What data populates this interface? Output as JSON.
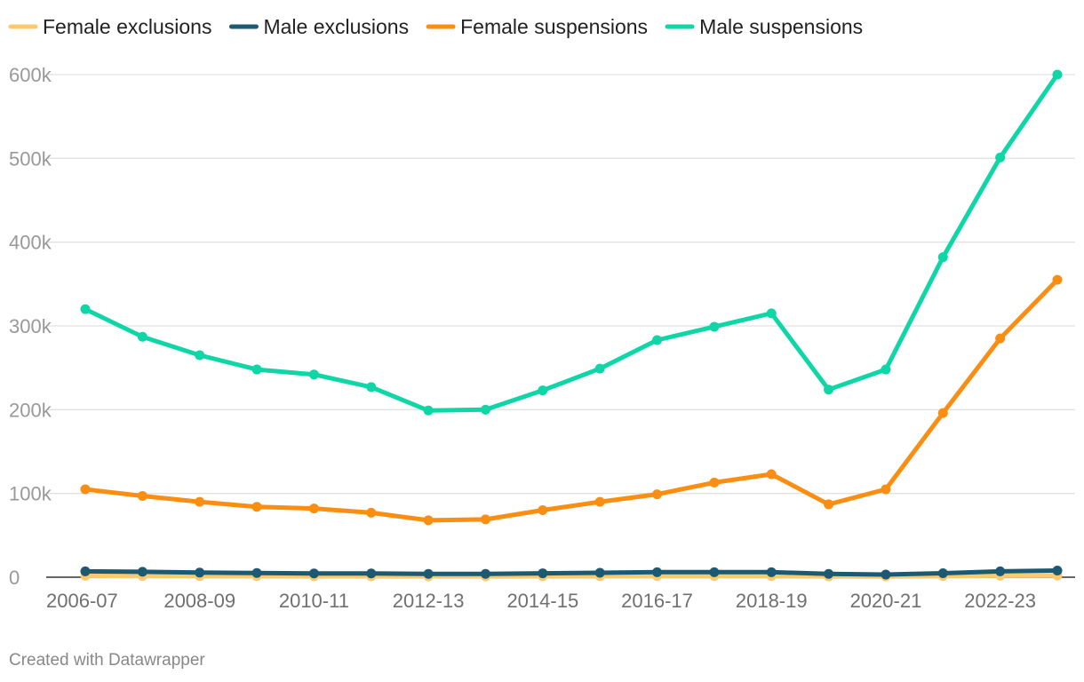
{
  "chart_data": {
    "type": "line",
    "title": "",
    "xlabel": "",
    "ylabel": "",
    "categories": [
      "2006-07",
      "2007-08",
      "2008-09",
      "2009-10",
      "2010-11",
      "2011-12",
      "2012-13",
      "2013-14",
      "2014-15",
      "2015-16",
      "2016-17",
      "2017-18",
      "2018-19",
      "2019-20",
      "2020-21",
      "2021-22",
      "2022-23",
      "2023-24"
    ],
    "x_tick_labels": [
      "2006-07",
      "2008-09",
      "2010-11",
      "2012-13",
      "2014-15",
      "2016-17",
      "2018-19",
      "2020-21",
      "2022-23"
    ],
    "y_tick_values": [
      0,
      100000,
      200000,
      300000,
      400000,
      500000,
      600000
    ],
    "y_tick_labels": [
      "0",
      "100k",
      "200k",
      "300k",
      "400k",
      "500k",
      "600k"
    ],
    "ylim": [
      0,
      600000
    ],
    "grid": true,
    "legend_position": "top-left",
    "series": [
      {
        "name": "Female exclusions",
        "color": "#fcc96c",
        "values": [
          1700,
          1500,
          1300,
          1200,
          1100,
          1100,
          1000,
          1000,
          1100,
          1200,
          1300,
          1400,
          1400,
          1000,
          900,
          1300,
          1800,
          2000
        ]
      },
      {
        "name": "Male exclusions",
        "color": "#1c5a73",
        "values": [
          7000,
          6500,
          5500,
          5000,
          4500,
          4500,
          4000,
          4000,
          4700,
          5300,
          6000,
          6000,
          6000,
          4000,
          3200,
          4800,
          7000,
          8000
        ]
      },
      {
        "name": "Female suspensions",
        "color": "#f98e13",
        "values": [
          105000,
          97000,
          90000,
          84000,
          82000,
          77000,
          68000,
          69000,
          80000,
          90000,
          99000,
          113000,
          123000,
          87000,
          105000,
          196000,
          285000,
          355000
        ]
      },
      {
        "name": "Male suspensions",
        "color": "#0ed6a6",
        "values": [
          320000,
          287000,
          265000,
          248000,
          242000,
          227000,
          199000,
          200000,
          223000,
          249000,
          283000,
          299000,
          315000,
          224000,
          248000,
          382000,
          501000,
          600000
        ]
      }
    ]
  },
  "footer": {
    "credit": "Created with Datawrapper"
  }
}
